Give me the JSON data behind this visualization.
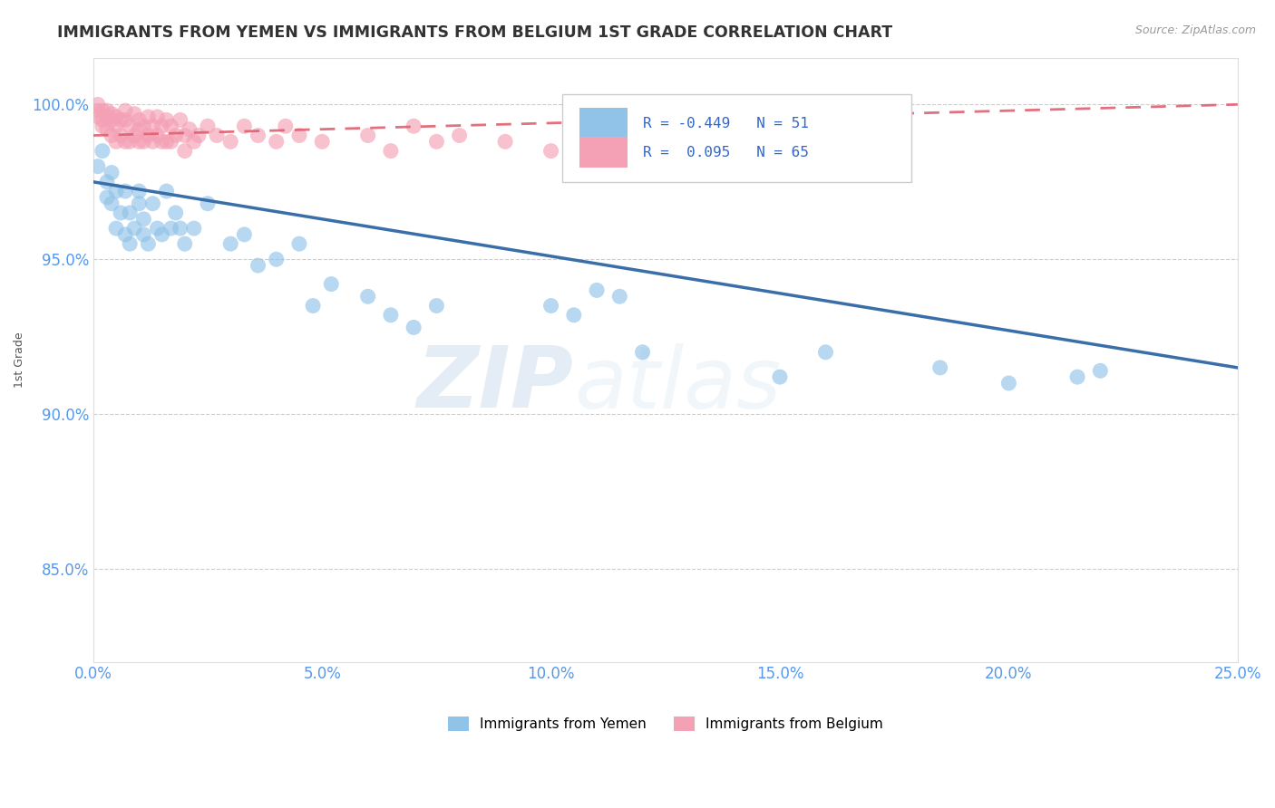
{
  "title": "IMMIGRANTS FROM YEMEN VS IMMIGRANTS FROM BELGIUM 1ST GRADE CORRELATION CHART",
  "source": "Source: ZipAtlas.com",
  "ylabel": "1st Grade",
  "xlim": [
    0.0,
    0.25
  ],
  "ylim": [
    0.82,
    1.015
  ],
  "xticks": [
    0.0,
    0.05,
    0.1,
    0.15,
    0.2,
    0.25
  ],
  "xticklabels": [
    "0.0%",
    "5.0%",
    "10.0%",
    "15.0%",
    "20.0%",
    "25.0%"
  ],
  "yticks": [
    0.85,
    0.9,
    0.95,
    1.0
  ],
  "yticklabels": [
    "85.0%",
    "90.0%",
    "95.0%",
    "100.0%"
  ],
  "yemen_color": "#91C3E8",
  "belgium_color": "#F4A0B5",
  "trend_yemen_color": "#3A6EA8",
  "trend_belgium_color": "#E06070",
  "R_yemen": -0.449,
  "N_yemen": 51,
  "R_belgium": 0.095,
  "N_belgium": 65,
  "yemen_x": [
    0.001,
    0.002,
    0.003,
    0.003,
    0.004,
    0.004,
    0.005,
    0.005,
    0.006,
    0.007,
    0.007,
    0.008,
    0.008,
    0.009,
    0.01,
    0.01,
    0.011,
    0.011,
    0.012,
    0.013,
    0.014,
    0.015,
    0.016,
    0.017,
    0.018,
    0.019,
    0.02,
    0.022,
    0.025,
    0.03,
    0.033,
    0.036,
    0.04,
    0.045,
    0.048,
    0.052,
    0.06,
    0.065,
    0.07,
    0.075,
    0.1,
    0.105,
    0.11,
    0.115,
    0.12,
    0.15,
    0.16,
    0.185,
    0.2,
    0.215,
    0.22
  ],
  "yemen_y": [
    0.98,
    0.985,
    0.97,
    0.975,
    0.968,
    0.978,
    0.972,
    0.96,
    0.965,
    0.972,
    0.958,
    0.965,
    0.955,
    0.96,
    0.972,
    0.968,
    0.963,
    0.958,
    0.955,
    0.968,
    0.96,
    0.958,
    0.972,
    0.96,
    0.965,
    0.96,
    0.955,
    0.96,
    0.968,
    0.955,
    0.958,
    0.948,
    0.95,
    0.955,
    0.935,
    0.942,
    0.938,
    0.932,
    0.928,
    0.935,
    0.935,
    0.932,
    0.94,
    0.938,
    0.92,
    0.912,
    0.92,
    0.915,
    0.91,
    0.912,
    0.914
  ],
  "belgium_x": [
    0.001,
    0.001,
    0.001,
    0.002,
    0.002,
    0.002,
    0.003,
    0.003,
    0.003,
    0.004,
    0.004,
    0.004,
    0.005,
    0.005,
    0.005,
    0.006,
    0.006,
    0.007,
    0.007,
    0.007,
    0.008,
    0.008,
    0.009,
    0.009,
    0.01,
    0.01,
    0.01,
    0.011,
    0.011,
    0.012,
    0.012,
    0.013,
    0.013,
    0.014,
    0.014,
    0.015,
    0.015,
    0.016,
    0.016,
    0.017,
    0.017,
    0.018,
    0.019,
    0.02,
    0.02,
    0.021,
    0.022,
    0.023,
    0.025,
    0.027,
    0.03,
    0.033,
    0.036,
    0.04,
    0.042,
    0.045,
    0.05,
    0.06,
    0.065,
    0.07,
    0.075,
    0.08,
    0.09,
    0.1,
    0.115
  ],
  "belgium_y": [
    1.0,
    0.998,
    0.996,
    0.998,
    0.995,
    0.993,
    0.998,
    0.996,
    0.992,
    0.997,
    0.995,
    0.99,
    0.996,
    0.993,
    0.988,
    0.995,
    0.99,
    0.998,
    0.995,
    0.988,
    0.993,
    0.988,
    0.997,
    0.99,
    0.995,
    0.992,
    0.988,
    0.993,
    0.988,
    0.996,
    0.99,
    0.993,
    0.988,
    0.996,
    0.99,
    0.993,
    0.988,
    0.995,
    0.988,
    0.993,
    0.988,
    0.99,
    0.995,
    0.99,
    0.985,
    0.992,
    0.988,
    0.99,
    0.993,
    0.99,
    0.988,
    0.993,
    0.99,
    0.988,
    0.993,
    0.99,
    0.988,
    0.99,
    0.985,
    0.993,
    0.988,
    0.99,
    0.988,
    0.985,
    0.993
  ],
  "watermark_zip": "ZIP",
  "watermark_atlas": "atlas",
  "background_color": "#ffffff",
  "grid_color": "#cccccc",
  "tick_color": "#5599EE",
  "title_color": "#333333",
  "source_color": "#999999",
  "ylabel_color": "#555555"
}
